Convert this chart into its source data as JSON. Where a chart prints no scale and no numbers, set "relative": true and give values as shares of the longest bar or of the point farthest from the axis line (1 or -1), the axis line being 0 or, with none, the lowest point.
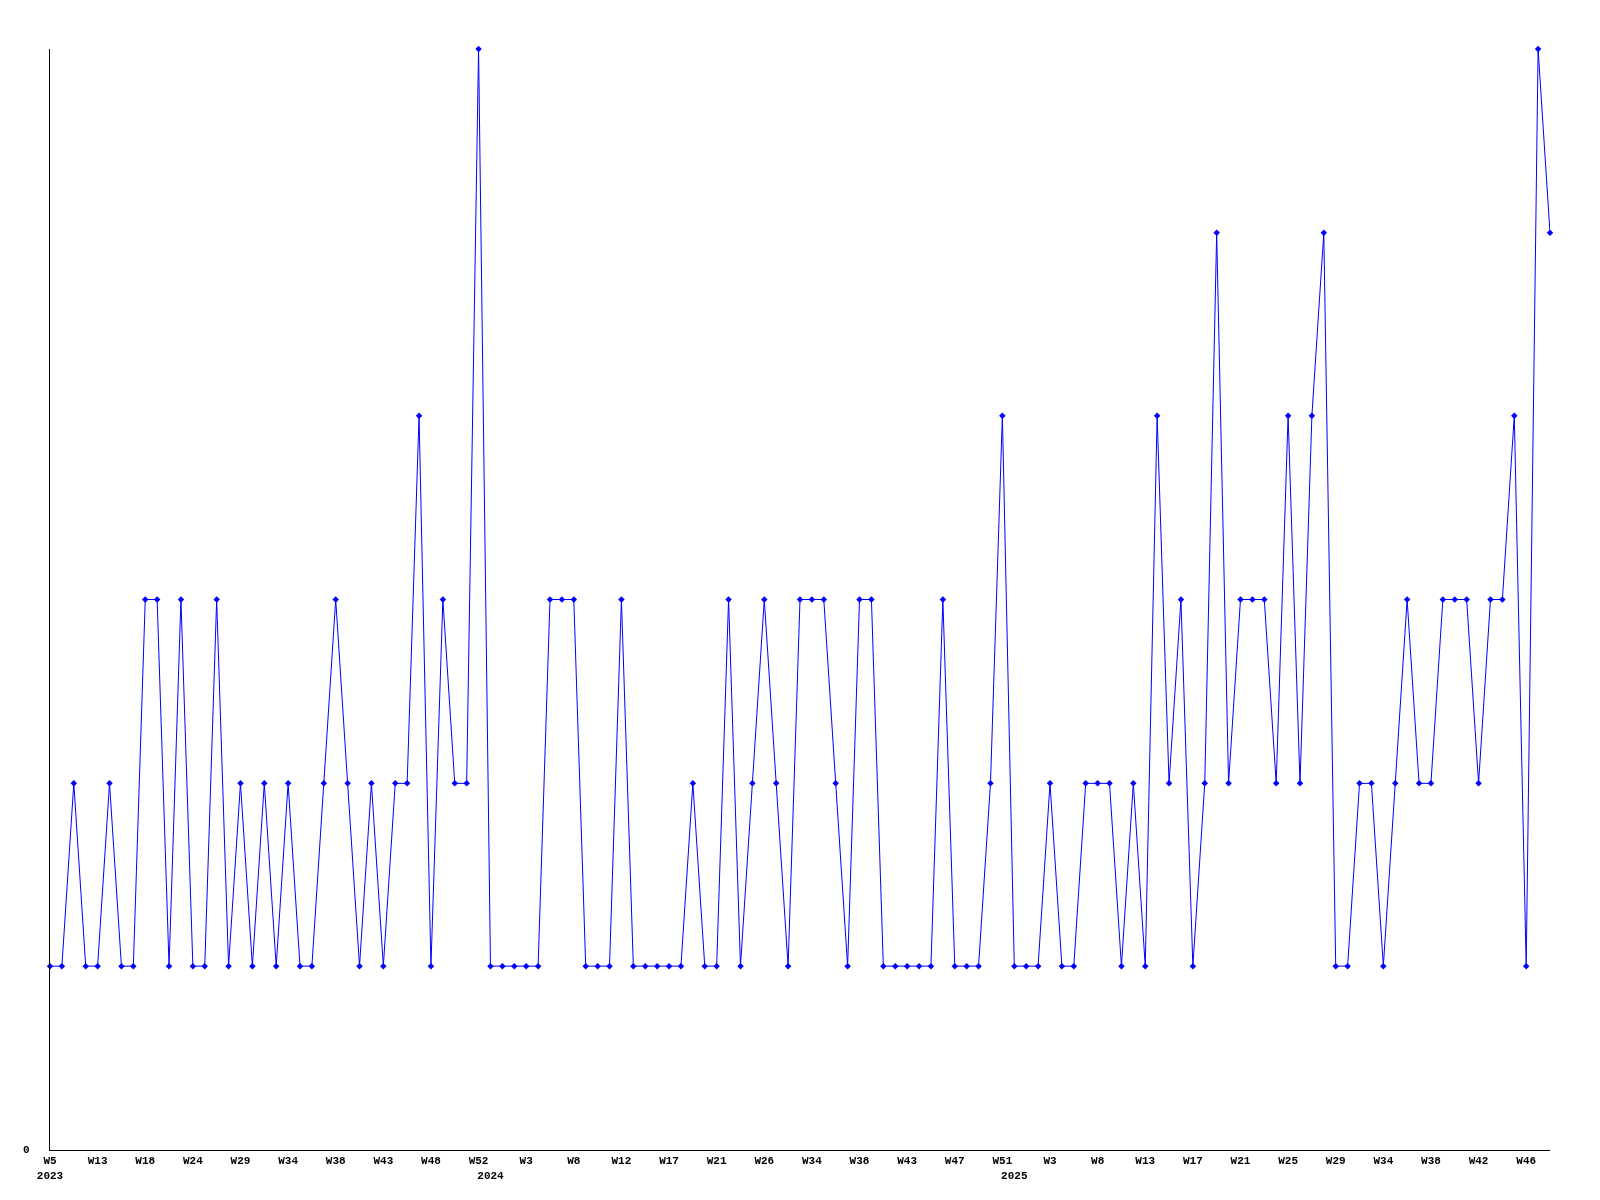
{
  "chart_data": {
    "type": "line",
    "relative": true,
    "annotations": [
      "0"
    ],
    "legend": false,
    "marker": "diamond",
    "line_style": "solid",
    "categories": [
      "W5\n2023",
      null,
      null,
      null,
      "W13",
      null,
      null,
      null,
      "W18",
      null,
      null,
      null,
      "W24",
      null,
      null,
      null,
      "W29",
      null,
      null,
      null,
      "W34",
      null,
      null,
      null,
      "W38",
      null,
      null,
      null,
      "W43",
      null,
      null,
      null,
      "W48",
      null,
      null,
      null,
      "W52",
      "\n2024",
      null,
      null,
      "W3",
      null,
      null,
      null,
      "W8",
      null,
      null,
      null,
      "W12",
      null,
      null,
      null,
      "W17",
      null,
      null,
      null,
      "W21",
      null,
      null,
      null,
      "W26",
      null,
      null,
      null,
      "W34",
      null,
      null,
      null,
      "W38",
      null,
      null,
      null,
      "W43",
      null,
      null,
      null,
      "W47",
      null,
      null,
      null,
      "W51",
      "\n2025",
      null,
      null,
      "W3",
      null,
      null,
      null,
      "W8",
      null,
      null,
      null,
      "W13",
      null,
      null,
      null,
      "W17",
      null,
      null,
      null,
      "W21",
      null,
      null,
      null,
      "W25",
      null,
      null,
      null,
      "W29",
      null,
      null,
      null,
      "W34",
      null,
      null,
      null,
      "W38",
      null,
      null,
      null,
      "W42",
      null,
      null,
      null,
      "W46",
      null,
      null
    ],
    "series": [
      {
        "color": "#0000ff",
        "values": [
          0.167,
          0.167,
          0.333,
          0.167,
          0.167,
          0.333,
          0.167,
          0.167,
          0.5,
          0.5,
          0.167,
          0.5,
          0.167,
          0.167,
          0.5,
          0.167,
          0.333,
          0.167,
          0.333,
          0.167,
          0.333,
          0.167,
          0.167,
          0.333,
          0.5,
          0.333,
          0.167,
          0.333,
          0.167,
          0.333,
          0.333,
          0.667,
          0.167,
          0.5,
          0.333,
          0.333,
          1,
          0.167,
          0.167,
          0.167,
          0.167,
          0.167,
          0.5,
          0.5,
          0.5,
          0.167,
          0.167,
          0.167,
          0.5,
          0.167,
          0.167,
          0.167,
          0.167,
          0.167,
          0.333,
          0.167,
          0.167,
          0.5,
          0.167,
          0.333,
          0.5,
          0.333,
          0.167,
          0.5,
          0.5,
          0.5,
          0.333,
          0.167,
          0.5,
          0.5,
          0.167,
          0.167,
          0.167,
          0.167,
          0.167,
          0.5,
          0.167,
          0.167,
          0.167,
          0.333,
          0.667,
          0.167,
          0.167,
          0.167,
          0.333,
          0.167,
          0.167,
          0.333,
          0.333,
          0.333,
          0.167,
          0.333,
          0.167,
          0.667,
          0.333,
          0.5,
          0.167,
          0.333,
          0.833,
          0.333,
          0.5,
          0.5,
          0.5,
          0.333,
          0.667,
          0.333,
          0.667,
          0.833,
          0.167,
          0.167,
          0.333,
          0.333,
          0.167,
          0.333,
          0.5,
          0.333,
          0.333,
          0.5,
          0.5,
          0.5,
          0.333,
          0.5,
          0.5,
          0.667,
          0.167,
          1,
          0.833
        ]
      }
    ]
  }
}
